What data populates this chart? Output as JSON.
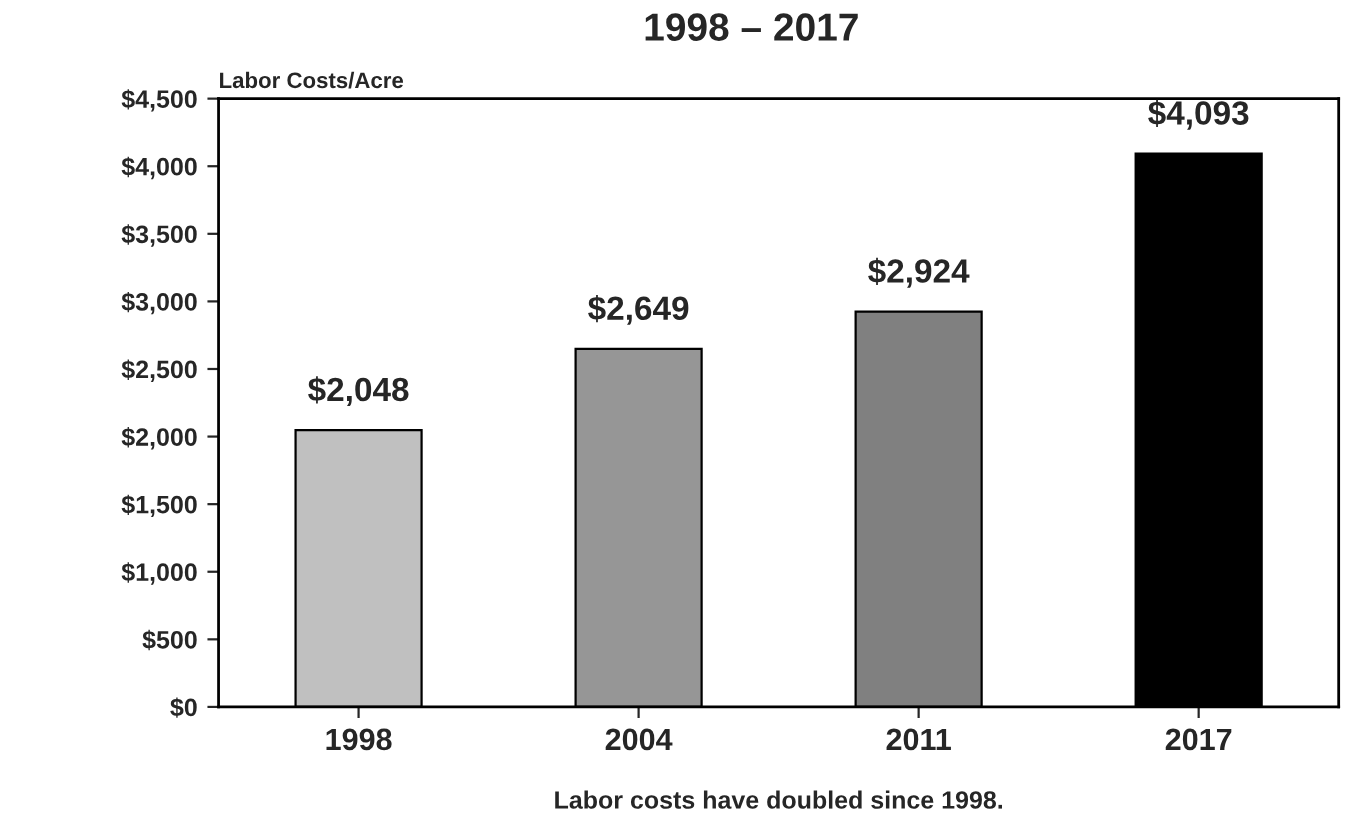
{
  "chart_data": {
    "type": "bar",
    "title": "1998 – 2017",
    "ylabel": "Labor Costs/Acre",
    "categories": [
      "1998",
      "2004",
      "2011",
      "2017"
    ],
    "values": [
      2048,
      2649,
      2924,
      4093
    ],
    "colors": [
      "#c0c0c0",
      "#969696",
      "#808080",
      "#000000"
    ],
    "value_labels": [
      "$2,048",
      "$2,649",
      "$2,924",
      "$4,093"
    ],
    "ylim": [
      0,
      4500
    ],
    "yticks": [
      {
        "value": 0,
        "label": "$0"
      },
      {
        "value": 500,
        "label": "$500"
      },
      {
        "value": 1000,
        "label": "$1,000"
      },
      {
        "value": 1500,
        "label": "$1,500"
      },
      {
        "value": 2000,
        "label": "$2,000"
      },
      {
        "value": 2500,
        "label": "$2,500"
      },
      {
        "value": 3000,
        "label": "$3,000"
      },
      {
        "value": 3500,
        "label": "$3,500"
      },
      {
        "value": 4000,
        "label": "$4,000"
      },
      {
        "value": 4500,
        "label": "$4,500"
      }
    ],
    "grid": false,
    "annotations": [
      "Labor costs have doubled since 1998."
    ]
  }
}
